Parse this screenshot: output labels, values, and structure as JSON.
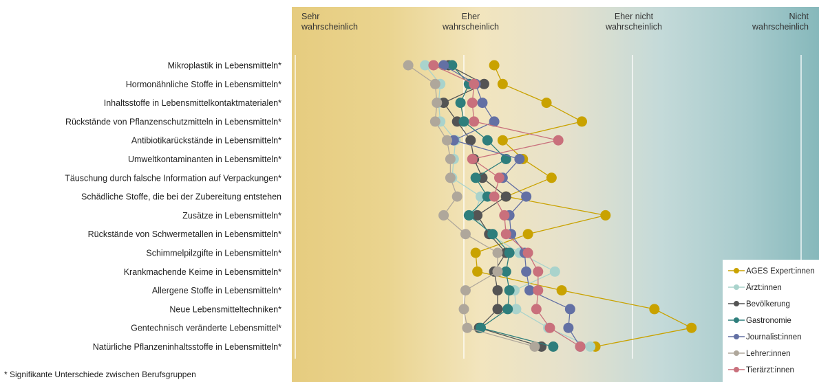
{
  "chart_data": {
    "type": "line",
    "orientation": "horizontal-dot-plot",
    "scale_labels": [
      "Sehr wahrscheinlich",
      "Eher wahrscheinlich",
      "Eher nicht wahrscheinlich",
      "Nicht wahrscheinlich"
    ],
    "scale_values": [
      1,
      2,
      3,
      4
    ],
    "xlim": [
      1,
      4
    ],
    "categories": [
      "Mikroplastik in Lebensmitteln*",
      "Hormonähnliche Stoffe in Lebensmitteln*",
      "Inhaltsstoffe in Lebensmittelkontaktmaterialen*",
      "Rückstände von Pflanzenschutzmitteln in Lebensmitteln*",
      "Antibiotikarückstände in Lebensmitteln*",
      "Umweltkontaminanten in Lebensmitteln*",
      "Täuschung durch falsche Information auf Verpackungen*",
      "Schädliche Stoffe, die bei der Zubereitung entstehen",
      "Zusätze in Lebensmitteln*",
      "Rückstände von Schwermetallen in Lebensmitteln*",
      "Schimmelpilzgifte in Lebensmitteln*",
      "Krankmachende Keime in Lebensmitteln*",
      "Allergene Stoffe in Lebensmitteln*",
      "Neue Lebensmitteltechniken*",
      "Gentechnisch veränderte Lebensmittel*",
      "Natürliche Pflanzeninhaltsstoffe in Lebensmitteln*"
    ],
    "series": [
      {
        "name": "AGES Expert:innen",
        "color": "#C9A200",
        "values": [
          2.18,
          2.23,
          2.49,
          2.7,
          2.23,
          2.35,
          2.52,
          2.25,
          2.84,
          2.38,
          2.07,
          2.08,
          2.58,
          3.13,
          3.35,
          2.78
        ]
      },
      {
        "name": "Ärzt:innen",
        "color": "#A9D3CC",
        "values": [
          1.77,
          1.86,
          1.85,
          1.86,
          1.95,
          1.94,
          1.93,
          2.1,
          2.06,
          2.15,
          2.33,
          2.54,
          2.3,
          2.31,
          2.5,
          2.75
        ]
      },
      {
        "name": "Bevölkerung",
        "color": "#545454",
        "values": [
          1.91,
          2.12,
          1.88,
          1.96,
          2.04,
          2.06,
          2.11,
          2.25,
          2.08,
          2.15,
          2.25,
          2.18,
          2.2,
          2.2,
          2.09,
          2.46
        ]
      },
      {
        "name": "Gastronomie",
        "color": "#2E7E7C",
        "values": [
          1.93,
          2.03,
          1.98,
          2.0,
          2.14,
          2.25,
          2.07,
          2.14,
          2.03,
          2.17,
          2.27,
          2.25,
          2.27,
          2.26,
          2.1,
          2.53
        ]
      },
      {
        "name": "Journalist:innen",
        "color": "#6370A4",
        "values": [
          1.88,
          2.07,
          2.11,
          2.18,
          1.94,
          2.33,
          2.23,
          2.37,
          2.27,
          2.28,
          2.36,
          2.37,
          2.39,
          2.63,
          2.62,
          2.69
        ]
      },
      {
        "name": "Lehrer:innen",
        "color": "#AFA79B",
        "values": [
          1.67,
          1.83,
          1.84,
          1.83,
          1.9,
          1.92,
          1.92,
          1.96,
          1.88,
          2.01,
          2.2,
          2.2,
          2.01,
          2.0,
          2.02,
          2.42
        ]
      },
      {
        "name": "Tierärzt:innen",
        "color": "#C9707C",
        "values": [
          1.82,
          2.06,
          2.05,
          2.06,
          2.56,
          2.05,
          2.21,
          2.18,
          2.24,
          2.25,
          2.38,
          2.44,
          2.44,
          2.43,
          2.51,
          2.69
        ]
      }
    ],
    "legend_position": "bottom-right",
    "grid": true
  },
  "footnote": "* Signifikante Unterschiede zwischen Berufsgruppen"
}
